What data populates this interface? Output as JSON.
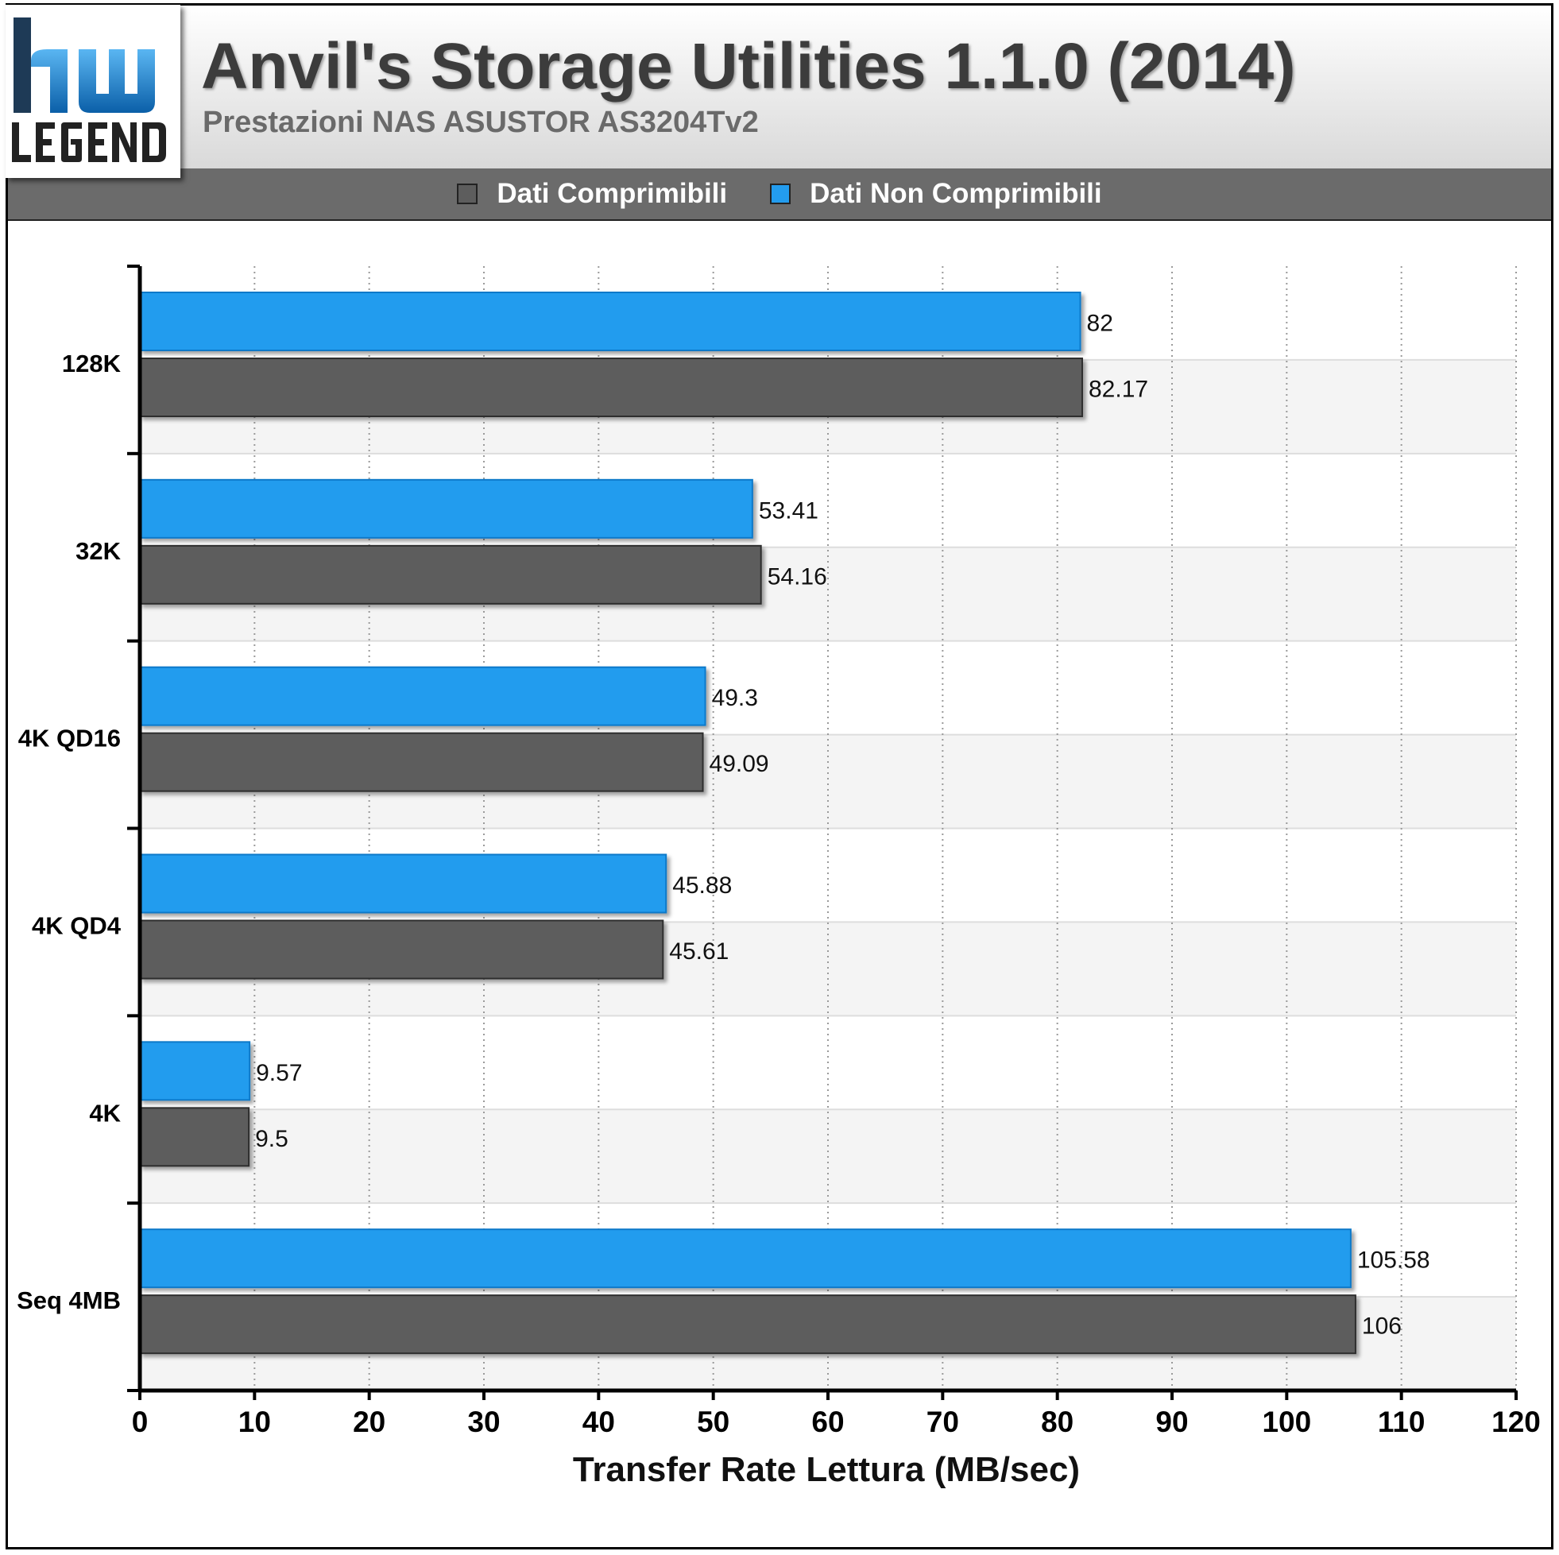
{
  "header": {
    "title": "Anvil's Storage Utilities 1.1.0 (2014)",
    "subtitle": "Prestazioni NAS ASUSTOR AS3204Tv2",
    "logo_text": "hwLEGEND"
  },
  "colors": {
    "compressible": "#5d5d5d",
    "non_compressible": "#239cee",
    "legend_bar": "#6b6b6b"
  },
  "chart_data": {
    "type": "bar",
    "orientation": "horizontal",
    "categories": [
      "128K",
      "32K",
      "4K QD16",
      "4K QD4",
      "4K",
      "Seq 4MB"
    ],
    "series": [
      {
        "name": "Dati Comprimibili",
        "color": "#5d5d5d",
        "values": [
          82.17,
          54.16,
          49.09,
          45.61,
          9.5,
          106
        ]
      },
      {
        "name": "Dati Non Comprimibili",
        "color": "#239cee",
        "values": [
          82,
          53.41,
          49.3,
          45.88,
          9.57,
          105.58
        ]
      }
    ],
    "data_labels": {
      "Dati Comprimibili": [
        "82.17",
        "54.16",
        "49.09",
        "45.61",
        "9.5",
        "106"
      ],
      "Dati Non Comprimibili": [
        "82",
        "53.41",
        "49.3",
        "45.88",
        "9.57",
        "105.58"
      ]
    },
    "xlabel": "Transfer Rate Lettura (MB/sec)",
    "ylabel": "",
    "xlim": [
      0,
      120
    ],
    "xticks": [
      "0",
      "10",
      "20",
      "30",
      "40",
      "50",
      "60",
      "70",
      "80",
      "90",
      "100",
      "110",
      "120"
    ],
    "grid": true,
    "legend_position": "top"
  }
}
